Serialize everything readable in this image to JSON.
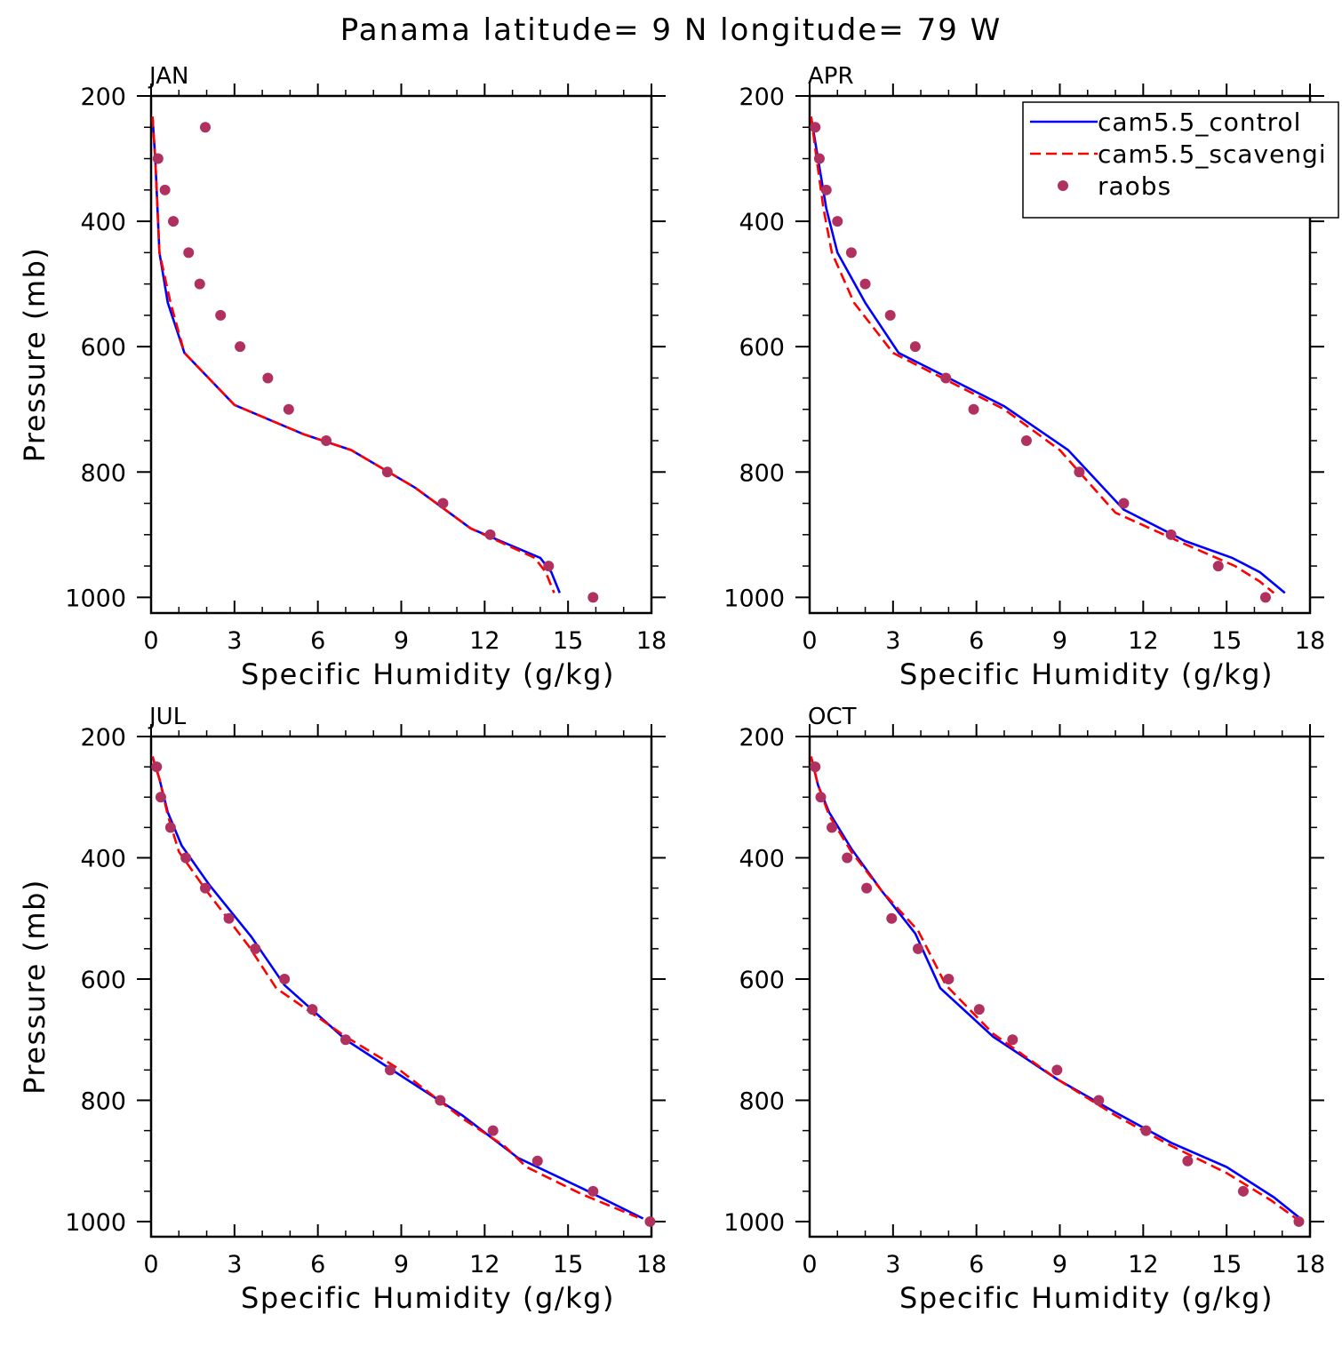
{
  "title": "Panama  latitude= 9 N longitude= 79 W",
  "legend": {
    "entries": [
      {
        "label": "cam5.5_control",
        "style": "solid",
        "color": "#0000ff"
      },
      {
        "label": "cam5.5_scavengi",
        "style": "dashed",
        "color": "#ff0000"
      },
      {
        "label": "raobs",
        "style": "dots",
        "color": "#b03060"
      }
    ],
    "placement": "top-right of APR panel"
  },
  "chart_data": [
    {
      "type": "line",
      "panel": "JAN",
      "xlabel": "Specific Humidity (g/kg)",
      "ylabel": "Pressure (mb)",
      "xlim": [
        0,
        18
      ],
      "ylim": [
        1025,
        200
      ],
      "xticks": [
        "0",
        "3",
        "6",
        "9",
        "12",
        "15",
        "18"
      ],
      "yticks": [
        "200",
        "400",
        "600",
        "800",
        "1000"
      ],
      "series": [
        {
          "name": "cam5.5_control",
          "points": [
            [
              0.05,
              233
            ],
            [
              0.15,
              300
            ],
            [
              0.3,
              450
            ],
            [
              0.6,
              530
            ],
            [
              1.2,
              610
            ],
            [
              3.0,
              693
            ],
            [
              5.5,
              740
            ],
            [
              7.2,
              765
            ],
            [
              9.5,
              825
            ],
            [
              11.5,
              890
            ],
            [
              14.0,
              937
            ],
            [
              14.4,
              960
            ],
            [
              14.7,
              993
            ]
          ]
        },
        {
          "name": "cam5.5_scavengi",
          "points": [
            [
              0.05,
              233
            ],
            [
              0.15,
              300
            ],
            [
              0.3,
              450
            ],
            [
              0.7,
              530
            ],
            [
              1.2,
              610
            ],
            [
              3.0,
              693
            ],
            [
              5.5,
              740
            ],
            [
              7.2,
              765
            ],
            [
              9.5,
              825
            ],
            [
              11.5,
              890
            ],
            [
              13.8,
              937
            ],
            [
              14.2,
              960
            ],
            [
              14.5,
              993
            ]
          ]
        },
        {
          "name": "raobs",
          "points": [
            [
              1.95,
              250
            ],
            [
              0.25,
              300
            ],
            [
              0.5,
              350
            ],
            [
              0.8,
              400
            ],
            [
              1.35,
              450
            ],
            [
              1.75,
              500
            ],
            [
              2.5,
              550
            ],
            [
              3.2,
              600
            ],
            [
              4.2,
              650
            ],
            [
              4.95,
              700
            ],
            [
              6.3,
              750
            ],
            [
              8.5,
              800
            ],
            [
              10.5,
              850
            ],
            [
              12.2,
              900
            ],
            [
              14.3,
              950
            ],
            [
              15.9,
              1000
            ]
          ]
        }
      ]
    },
    {
      "type": "line",
      "panel": "APR",
      "xlabel": "Specific Humidity (g/kg)",
      "ylabel": "Pressure (mb)",
      "xlim": [
        0,
        18
      ],
      "ylim": [
        1025,
        200
      ],
      "xticks": [
        "0",
        "3",
        "6",
        "9",
        "12",
        "15",
        "18"
      ],
      "yticks": [
        "200",
        "400",
        "600",
        "800",
        "1000"
      ],
      "series": [
        {
          "name": "cam5.5_control",
          "points": [
            [
              0.05,
              233
            ],
            [
              0.3,
              300
            ],
            [
              0.6,
              380
            ],
            [
              1.0,
              450
            ],
            [
              2.0,
              530
            ],
            [
              3.2,
              610
            ],
            [
              5.0,
              650
            ],
            [
              7.0,
              695
            ],
            [
              9.3,
              765
            ],
            [
              11.3,
              860
            ],
            [
              13.5,
              910
            ],
            [
              15.2,
              937
            ],
            [
              16.2,
              960
            ],
            [
              17.1,
              993
            ]
          ]
        },
        {
          "name": "cam5.5_scavengi",
          "points": [
            [
              0.05,
              233
            ],
            [
              0.25,
              300
            ],
            [
              0.5,
              380
            ],
            [
              0.8,
              450
            ],
            [
              1.6,
              530
            ],
            [
              3.0,
              610
            ],
            [
              5.0,
              655
            ],
            [
              7.0,
              700
            ],
            [
              9.0,
              765
            ],
            [
              11.0,
              865
            ],
            [
              13.5,
              915
            ],
            [
              15.3,
              950
            ],
            [
              16.2,
              975
            ],
            [
              16.7,
              993
            ]
          ]
        },
        {
          "name": "raobs",
          "points": [
            [
              0.2,
              250
            ],
            [
              0.35,
              300
            ],
            [
              0.6,
              350
            ],
            [
              1.0,
              400
            ],
            [
              1.5,
              450
            ],
            [
              2.0,
              500
            ],
            [
              2.9,
              550
            ],
            [
              3.8,
              600
            ],
            [
              4.9,
              650
            ],
            [
              5.9,
              700
            ],
            [
              7.8,
              750
            ],
            [
              9.7,
              800
            ],
            [
              11.3,
              850
            ],
            [
              13.0,
              900
            ],
            [
              14.7,
              950
            ],
            [
              16.4,
              1000
            ]
          ]
        }
      ]
    },
    {
      "type": "line",
      "panel": "JUL",
      "xlabel": "Specific Humidity (g/kg)",
      "ylabel": "Pressure (mb)",
      "xlim": [
        0,
        18
      ],
      "ylim": [
        1025,
        200
      ],
      "xticks": [
        "0",
        "3",
        "6",
        "9",
        "12",
        "15",
        "18"
      ],
      "yticks": [
        "200",
        "400",
        "600",
        "800",
        "1000"
      ],
      "series": [
        {
          "name": "cam5.5_control",
          "points": [
            [
              0.05,
              233
            ],
            [
              0.3,
              270
            ],
            [
              0.6,
              325
            ],
            [
              1.1,
              380
            ],
            [
              2.1,
              445
            ],
            [
              3.6,
              530
            ],
            [
              4.8,
              610
            ],
            [
              7.0,
              700
            ],
            [
              8.5,
              745
            ],
            [
              11.2,
              825
            ],
            [
              13.2,
              895
            ],
            [
              15.5,
              945
            ],
            [
              17.7,
              995
            ]
          ]
        },
        {
          "name": "cam5.5_scavengi",
          "points": [
            [
              0.05,
              233
            ],
            [
              0.3,
              270
            ],
            [
              0.6,
              330
            ],
            [
              1.0,
              390
            ],
            [
              2.0,
              455
            ],
            [
              3.5,
              545
            ],
            [
              4.5,
              615
            ],
            [
              7.0,
              695
            ],
            [
              8.8,
              745
            ],
            [
              11.2,
              830
            ],
            [
              12.7,
              875
            ],
            [
              13.5,
              910
            ],
            [
              15.5,
              955
            ],
            [
              17.5,
              993
            ]
          ]
        },
        {
          "name": "raobs",
          "points": [
            [
              0.2,
              250
            ],
            [
              0.35,
              300
            ],
            [
              0.7,
              350
            ],
            [
              1.25,
              400
            ],
            [
              1.95,
              450
            ],
            [
              2.8,
              500
            ],
            [
              3.75,
              550
            ],
            [
              4.8,
              600
            ],
            [
              5.8,
              650
            ],
            [
              7.0,
              700
            ],
            [
              8.6,
              750
            ],
            [
              10.4,
              800
            ],
            [
              12.3,
              850
            ],
            [
              13.9,
              900
            ],
            [
              15.9,
              950
            ],
            [
              17.95,
              1000
            ]
          ]
        }
      ]
    },
    {
      "type": "line",
      "panel": "OCT",
      "xlabel": "Specific Humidity (g/kg)",
      "ylabel": "Pressure (mb)",
      "xlim": [
        0,
        18
      ],
      "ylim": [
        1025,
        200
      ],
      "xticks": [
        "0",
        "3",
        "6",
        "9",
        "12",
        "15",
        "18"
      ],
      "yticks": [
        "200",
        "400",
        "600",
        "800",
        "1000"
      ],
      "series": [
        {
          "name": "cam5.5_control",
          "points": [
            [
              0.05,
              233
            ],
            [
              0.3,
              280
            ],
            [
              0.7,
              325
            ],
            [
              1.5,
              385
            ],
            [
              2.6,
              455
            ],
            [
              3.8,
              525
            ],
            [
              4.7,
              615
            ],
            [
              6.6,
              695
            ],
            [
              8.9,
              765
            ],
            [
              11.0,
              820
            ],
            [
              13.0,
              870
            ],
            [
              15.0,
              910
            ],
            [
              16.7,
              960
            ],
            [
              17.6,
              993
            ]
          ]
        },
        {
          "name": "cam5.5_scavengi",
          "points": [
            [
              0.05,
              233
            ],
            [
              0.3,
              280
            ],
            [
              0.7,
              330
            ],
            [
              1.5,
              390
            ],
            [
              2.6,
              455
            ],
            [
              3.9,
              520
            ],
            [
              4.9,
              610
            ],
            [
              6.6,
              690
            ],
            [
              8.9,
              765
            ],
            [
              11.0,
              825
            ],
            [
              13.0,
              875
            ],
            [
              15.0,
              920
            ],
            [
              16.6,
              965
            ],
            [
              17.5,
              995
            ]
          ]
        },
        {
          "name": "raobs",
          "points": [
            [
              0.2,
              250
            ],
            [
              0.4,
              300
            ],
            [
              0.8,
              350
            ],
            [
              1.35,
              400
            ],
            [
              2.05,
              450
            ],
            [
              2.95,
              500
            ],
            [
              3.9,
              550
            ],
            [
              5.0,
              600
            ],
            [
              6.1,
              650
            ],
            [
              7.3,
              700
            ],
            [
              8.9,
              750
            ],
            [
              10.4,
              800
            ],
            [
              12.1,
              850
            ],
            [
              13.6,
              900
            ],
            [
              15.6,
              950
            ],
            [
              17.6,
              1000
            ]
          ]
        }
      ]
    }
  ]
}
